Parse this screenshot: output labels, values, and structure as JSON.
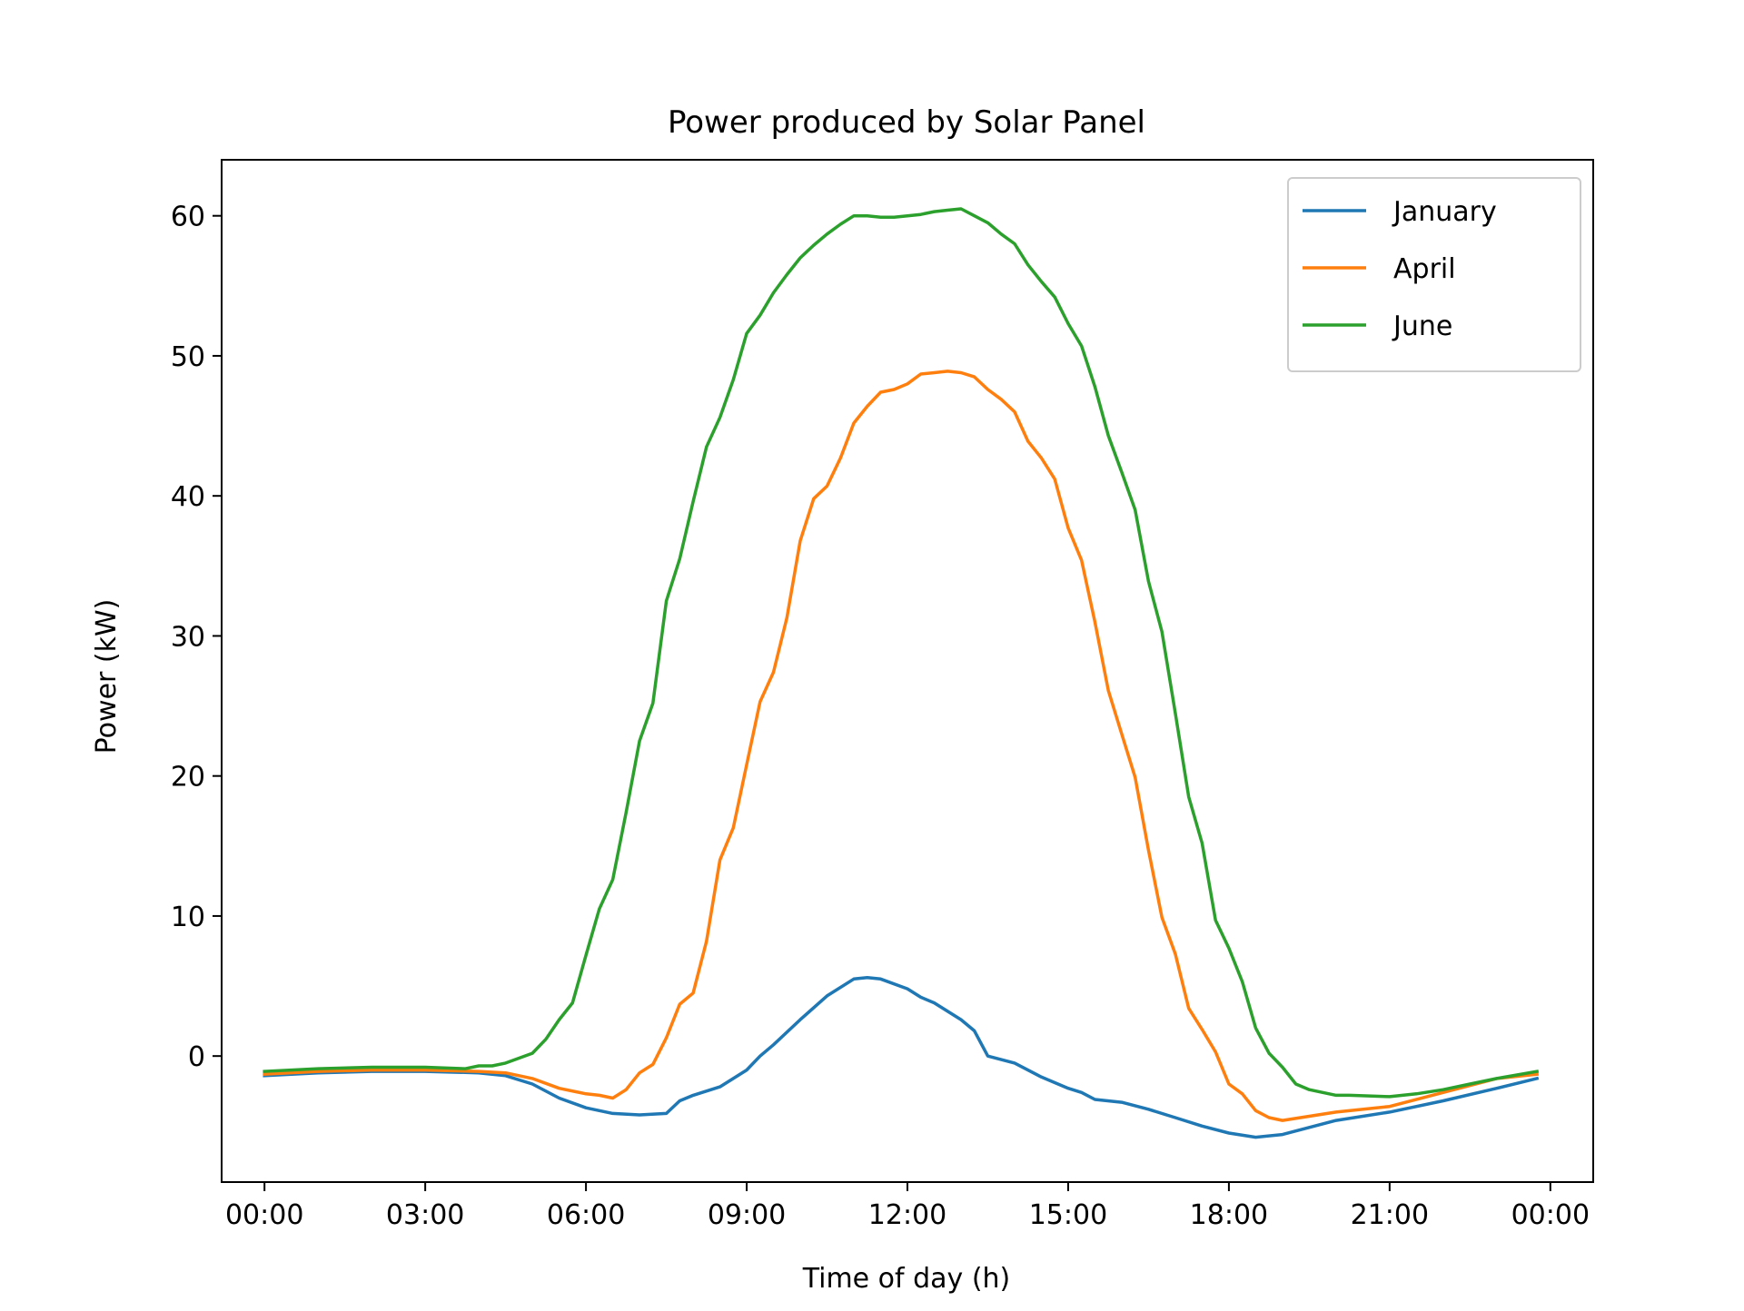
{
  "chart_data": {
    "type": "line",
    "title": "Power produced by Solar Panel",
    "xlabel": "Time of day (h)",
    "ylabel": "Power (kW)",
    "xlim": [
      -0.8,
      24.8
    ],
    "ylim": [
      -9,
      64
    ],
    "xticks": [
      0,
      3,
      6,
      9,
      12,
      15,
      18,
      21,
      24
    ],
    "xtick_labels": [
      "00:00",
      "03:00",
      "06:00",
      "09:00",
      "12:00",
      "15:00",
      "18:00",
      "21:00",
      "00:00"
    ],
    "yticks": [
      0,
      10,
      20,
      30,
      40,
      50,
      60
    ],
    "ytick_labels": [
      "0",
      "10",
      "20",
      "30",
      "40",
      "50",
      "60"
    ],
    "grid": false,
    "legend_position": "top-right",
    "series": [
      {
        "name": "January",
        "color": "#1f77b4",
        "x": [
          0,
          1,
          2,
          3,
          4,
          4.5,
          5,
          5.5,
          6,
          6.5,
          7,
          7.5,
          7.75,
          8,
          8.5,
          9,
          9.25,
          9.5,
          10,
          10.5,
          11,
          11.25,
          11.5,
          12,
          12.25,
          12.5,
          13,
          13.25,
          13.5,
          14,
          14.5,
          15,
          15.25,
          15.5,
          16,
          16.5,
          17,
          17.5,
          18,
          18.5,
          19,
          19.5,
          20,
          21,
          22,
          23,
          23.75
        ],
        "values": [
          -1.4,
          -1.2,
          -1.1,
          -1.1,
          -1.2,
          -1.4,
          -2,
          -3,
          -3.7,
          -4.1,
          -4.2,
          -4.1,
          -3.2,
          -2.8,
          -2.2,
          -1,
          0,
          0.8,
          2.6,
          4.3,
          5.5,
          5.6,
          5.5,
          4.8,
          4.2,
          3.8,
          2.6,
          1.8,
          0,
          -0.5,
          -1.5,
          -2.3,
          -2.6,
          -3.1,
          -3.3,
          -3.8,
          -4.4,
          -5,
          -5.5,
          -5.8,
          -5.6,
          -5.1,
          -4.6,
          -4,
          -3.2,
          -2.3,
          -1.6
        ]
      },
      {
        "name": "April",
        "color": "#ff7f0e",
        "x": [
          0,
          1,
          2,
          3,
          4,
          4.5,
          5,
          5.5,
          6,
          6.25,
          6.5,
          6.75,
          7,
          7.25,
          7.5,
          7.75,
          8,
          8.25,
          8.5,
          8.75,
          9,
          9.25,
          9.5,
          9.75,
          10,
          10.25,
          10.5,
          10.75,
          11,
          11.25,
          11.5,
          11.75,
          12,
          12.25,
          12.5,
          12.75,
          13,
          13.25,
          13.5,
          13.75,
          14,
          14.25,
          14.5,
          14.75,
          15,
          15.25,
          15.5,
          15.75,
          16,
          16.25,
          16.5,
          16.75,
          17,
          17.25,
          17.5,
          17.75,
          18,
          18.25,
          18.5,
          18.75,
          19,
          19.5,
          20,
          21,
          22,
          23,
          23.75
        ],
        "values": [
          -1.3,
          -1.1,
          -1,
          -1,
          -1.1,
          -1.2,
          -1.6,
          -2.3,
          -2.7,
          -2.8,
          -3,
          -2.4,
          -1.2,
          -0.6,
          1.3,
          3.7,
          4.5,
          8.2,
          14,
          16.3,
          20.8,
          25.3,
          27.4,
          31.3,
          36.8,
          39.8,
          40.7,
          42.7,
          45.2,
          46.4,
          47.4,
          47.6,
          48,
          48.7,
          48.8,
          48.9,
          48.8,
          48.5,
          47.6,
          46.9,
          46,
          43.9,
          42.7,
          41.2,
          37.7,
          35.4,
          31,
          26.1,
          23,
          19.9,
          14.7,
          9.9,
          7.3,
          3.4,
          1.9,
          0.3,
          -2,
          -2.7,
          -3.9,
          -4.4,
          -4.6,
          -4.3,
          -4,
          -3.6,
          -2.6,
          -1.6,
          -1.3
        ]
      },
      {
        "name": "June",
        "color": "#2ca02c",
        "x": [
          0,
          1,
          2,
          3,
          3.75,
          4,
          4.25,
          4.5,
          5,
          5.25,
          5.5,
          5.75,
          6,
          6.25,
          6.5,
          6.75,
          7,
          7.25,
          7.5,
          7.75,
          8,
          8.25,
          8.5,
          8.75,
          9,
          9.25,
          9.5,
          9.75,
          10,
          10.25,
          10.5,
          10.75,
          11,
          11.25,
          11.5,
          11.75,
          12,
          12.25,
          12.5,
          12.75,
          13,
          13.25,
          13.5,
          13.75,
          14,
          14.25,
          14.5,
          14.75,
          15,
          15.25,
          15.5,
          15.75,
          16,
          16.25,
          16.5,
          16.75,
          17,
          17.25,
          17.5,
          17.75,
          18,
          18.25,
          18.5,
          18.75,
          19,
          19.25,
          19.5,
          20,
          20.25,
          21,
          21.5,
          22,
          22.5,
          23,
          23.75
        ],
        "values": [
          -1.1,
          -0.9,
          -0.8,
          -0.8,
          -0.9,
          -0.7,
          -0.7,
          -0.5,
          0.2,
          1.2,
          2.6,
          3.8,
          7.2,
          10.5,
          12.6,
          17.4,
          22.5,
          25.2,
          32.5,
          35.5,
          39.6,
          43.5,
          45.6,
          48.3,
          51.6,
          52.9,
          54.5,
          55.8,
          57,
          57.9,
          58.7,
          59.4,
          60,
          60,
          59.9,
          59.9,
          60,
          60.1,
          60.3,
          60.4,
          60.5,
          60,
          59.5,
          58.7,
          58,
          56.5,
          55.3,
          54.2,
          52.3,
          50.7,
          47.8,
          44.3,
          41.7,
          39,
          33.9,
          30.3,
          24.5,
          18.5,
          15.2,
          9.7,
          7.7,
          5.3,
          2,
          0.2,
          -0.8,
          -2,
          -2.4,
          -2.8,
          -2.8,
          -2.9,
          -2.7,
          -2.4,
          -2,
          -1.6,
          -1.1
        ]
      }
    ]
  }
}
